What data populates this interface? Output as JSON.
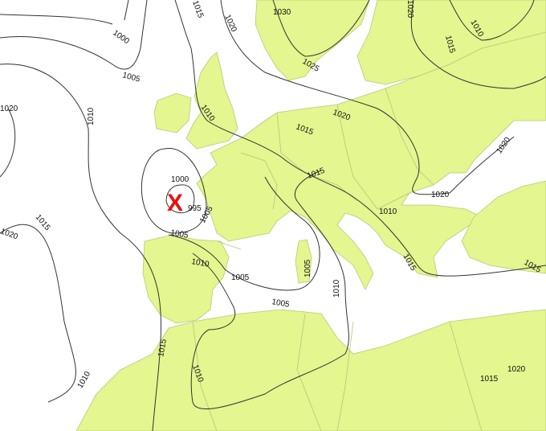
{
  "map": {
    "land_color": "#e3f68f",
    "isobar_color": "#333333",
    "low_marker": {
      "symbol": "X",
      "color": "#e81010",
      "center_value": "995"
    },
    "isobar_labels": [
      "1000",
      "1005",
      "1010",
      "1015",
      "1020",
      "1025",
      "1030",
      "1010",
      "1015",
      "1020",
      "1020",
      "1020",
      "1015",
      "1010",
      "1015",
      "1010",
      "1005",
      "1000",
      "1005",
      "1005",
      "1010",
      "1015",
      "1020",
      "1015",
      "1010",
      "1005",
      "1010",
      "1015",
      "1015",
      "1015",
      "1020",
      "1010",
      "1005"
    ]
  }
}
